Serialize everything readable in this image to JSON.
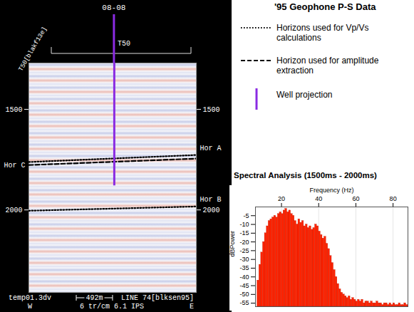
{
  "legend_title": "'95 Geophone P-S Data",
  "legend_items": [
    {
      "label": "Horizons used for Vp/Vs calculations",
      "line_style": "dotted",
      "color": "#000000"
    },
    {
      "label": "Horizon used for amplitude extraction",
      "line_style": "dashed",
      "color": "#000000"
    },
    {
      "label": "Well projection",
      "line_style": "solid",
      "color": "#8a2be2"
    }
  ],
  "chart_data": [
    {
      "type": "seismic_section",
      "line_header": "T50[blakf13e]",
      "marker_label": "T50",
      "xlim": [
        0,
        2270
      ],
      "ylim": [
        1270,
        2410
      ],
      "yticks": [
        1500,
        2000
      ],
      "tick_labels": "y",
      "well": {
        "name": "08-08",
        "x": 1158,
        "time": [
          1270,
          1880
        ],
        "color": "#8a2be2"
      },
      "horizons": [
        {
          "name": "Hor A",
          "line_style": "dotted",
          "color": "#000000",
          "x": [
            0,
            2270
          ],
          "time": [
            1762,
            1727
          ]
        },
        {
          "name": "Hor C",
          "line_style": "dashed",
          "color": "#000000",
          "x": [
            0,
            2270
          ],
          "time": [
            1777,
            1745
          ]
        },
        {
          "name": "Hor B",
          "line_style": "dotted",
          "color": "#000000",
          "x": [
            0,
            2270
          ],
          "time": [
            2004,
            1983
          ]
        }
      ],
      "footer": {
        "file": "temp01.3dv",
        "scale_bar": {
          "label": "492m",
          "length": 492
        },
        "line": "LINE 74[blksen95]",
        "west": "W",
        "display": "6 tr/cm 6.1 IPS",
        "east": "E"
      }
    },
    {
      "type": "histogram",
      "title": "Spectral Analysis (1500ms - 2000ms)",
      "x_label": "Frequency (Hz)",
      "y_label": "dBPower",
      "bins": [
        7,
        8,
        9,
        10,
        11,
        12,
        13,
        14,
        15,
        16,
        17,
        18,
        19,
        20,
        21,
        22,
        23,
        24,
        25,
        26,
        27,
        28,
        29,
        30,
        31,
        32,
        33,
        34,
        35,
        36,
        37,
        38,
        39,
        40,
        41,
        42,
        43,
        44,
        45,
        46,
        47,
        48,
        49,
        50,
        51,
        52,
        53,
        54,
        55,
        56,
        57,
        58,
        59,
        60,
        61,
        62,
        63,
        64,
        65,
        66,
        67,
        68,
        69,
        70,
        71,
        72,
        73,
        74,
        75,
        76,
        77,
        78,
        79,
        80,
        81,
        82,
        83,
        84,
        85,
        86,
        87,
        88
      ],
      "values": [
        -42,
        -33,
        -26,
        -20,
        -15,
        -11,
        -8,
        -7,
        -6,
        -5,
        -6,
        -4,
        -3,
        -4,
        -2,
        -1,
        -3,
        -2,
        -4,
        -5,
        -8,
        -10,
        -7,
        -9,
        -8,
        -11,
        -10,
        -12,
        -11,
        -13,
        -12,
        -10,
        -11,
        -14,
        -16,
        -18,
        -17,
        -21,
        -24,
        -28,
        -32,
        -36,
        -40,
        -44,
        -47,
        -49,
        -50,
        -51,
        -52,
        -51,
        -53,
        -52,
        -53,
        -54,
        -53,
        -54,
        -53,
        -55,
        -54,
        -54,
        -55,
        -54,
        -55,
        -55,
        -54,
        -55,
        -55,
        -56,
        -55,
        -55,
        -56,
        -55,
        -56,
        -55,
        -56,
        -56,
        -55,
        -56,
        -56,
        -55,
        -56
      ],
      "color": "#ff2200",
      "xlim": [
        6,
        88
      ],
      "xticks": [
        20,
        40,
        60,
        80
      ],
      "ylim": [
        -57,
        0
      ],
      "yticks": [
        -5,
        -10,
        -15,
        -20,
        -25,
        -30,
        -35,
        -40,
        -45,
        -50,
        -55
      ],
      "grid": true
    }
  ]
}
